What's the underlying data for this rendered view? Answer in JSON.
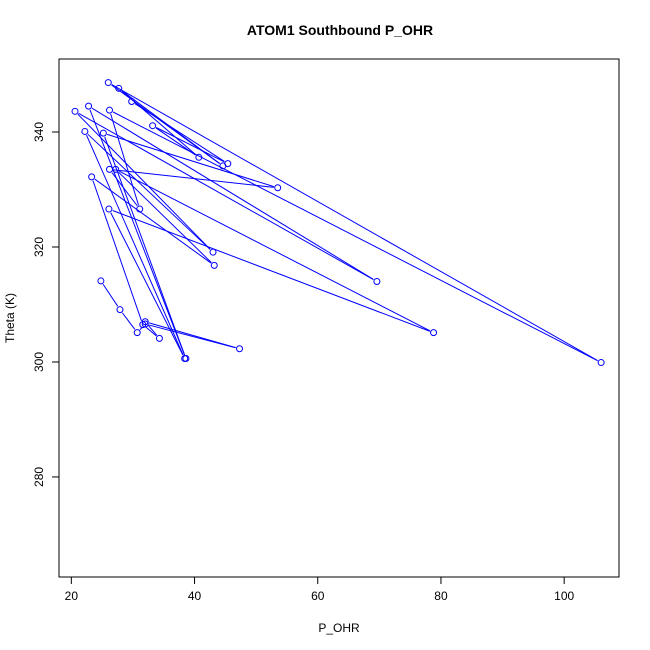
{
  "chart_data": {
    "type": "line",
    "title": "ATOM1 Southbound P_OHR",
    "xlabel": "P_OHR",
    "ylabel": "Theta (K)",
    "xlim": [
      18.0,
      108.9
    ],
    "ylim": [
      262.6,
      352.7
    ],
    "xticks": [
      20,
      40,
      60,
      80,
      100
    ],
    "yticks": [
      280,
      300,
      320,
      340
    ],
    "grid": false,
    "series": [
      {
        "color": "#0000ff",
        "markers": "open-circle",
        "x": [
          24.8,
          27.9,
          30.7,
          32.0,
          47.3,
          32.0,
          34.3,
          31.6,
          23.3,
          43.2,
          27.2,
          78.8,
          26.1,
          38.4,
          22.2,
          43.0,
          20.6,
          69.6,
          22.8,
          38.6,
          25.2,
          53.5,
          26.2,
          31.1,
          26.2,
          106.0,
          26.0,
          44.6,
          27.7,
          40.7,
          33.2,
          45.4,
          29.8
        ],
        "y": [
          314.1,
          309.1,
          305.1,
          306.6,
          302.3,
          307.0,
          304.1,
          306.5,
          332.2,
          316.8,
          333.5,
          305.1,
          326.6,
          300.6,
          340.1,
          319.1,
          343.6,
          314.0,
          344.5,
          300.6,
          339.8,
          330.3,
          333.5,
          326.6,
          343.8,
          299.9,
          348.6,
          334.1,
          347.6,
          335.6,
          341.1,
          334.5,
          345.3
        ]
      }
    ]
  }
}
